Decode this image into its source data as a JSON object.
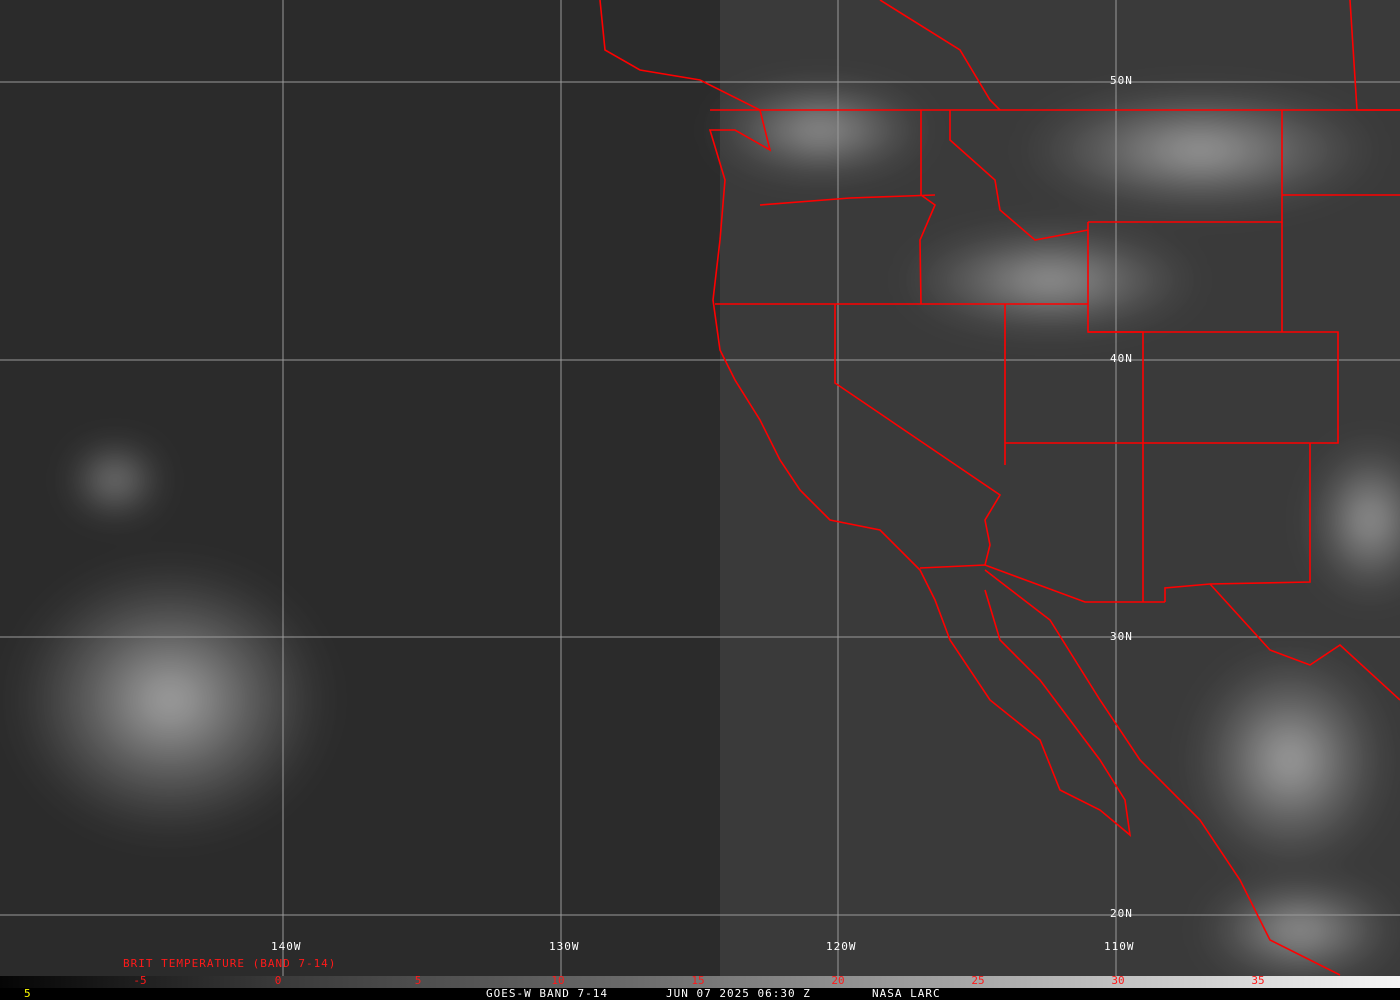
{
  "colors": {
    "borders": "#ff0000",
    "graticule": "#a0a0a0",
    "labels": "#ffffff",
    "legend_title": "#ff0000",
    "corner_value": "#ffff00"
  },
  "graticule": {
    "longitudes": [
      "140W",
      "130W",
      "120W",
      "110W"
    ],
    "latitudes": [
      "50N",
      "40N",
      "30N",
      "20N"
    ]
  },
  "legend": {
    "title": "BRIT TEMPERATURE (BAND 7-14)",
    "ticks": [
      "-5",
      "0",
      "5",
      "10",
      "15",
      "20",
      "25",
      "30",
      "35"
    ],
    "scale": "grayscale black-to-white"
  },
  "footer": {
    "corner": "5",
    "product": "GOES-W BAND 7-14",
    "datetime": "JUN 07 2025 06:30 Z",
    "source": "NASA LARC"
  }
}
